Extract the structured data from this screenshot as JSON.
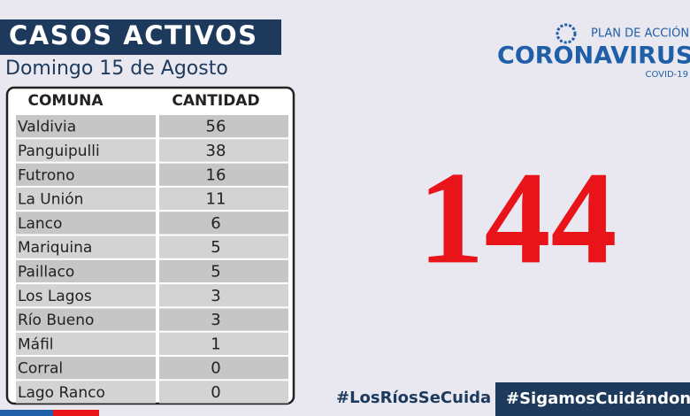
{
  "header": {
    "title": "CASOS ACTIVOS",
    "subtitle": "Domingo 15 de Agosto"
  },
  "logo": {
    "top": "PLAN DE ACCIÓN",
    "main": "CORONAVIRUS",
    "sub": "COVID-19"
  },
  "table": {
    "columns": [
      "COMUNA",
      "CANTIDAD"
    ],
    "rows": [
      [
        "Valdivia",
        56
      ],
      [
        "Panguipulli",
        38
      ],
      [
        "Futrono",
        16
      ],
      [
        "La Unión",
        11
      ],
      [
        "Lanco",
        6
      ],
      [
        "Mariquina",
        5
      ],
      [
        "Paillaco",
        5
      ],
      [
        "Los Lagos",
        3
      ],
      [
        "Río Bueno",
        3
      ],
      [
        "Máfil",
        1
      ],
      [
        "Corral",
        0
      ],
      [
        "Lago Ranco",
        0
      ]
    ]
  },
  "total": 144,
  "hashtags": [
    "#LosRíosSeCuida",
    "#SigamosCuidándono"
  ]
}
